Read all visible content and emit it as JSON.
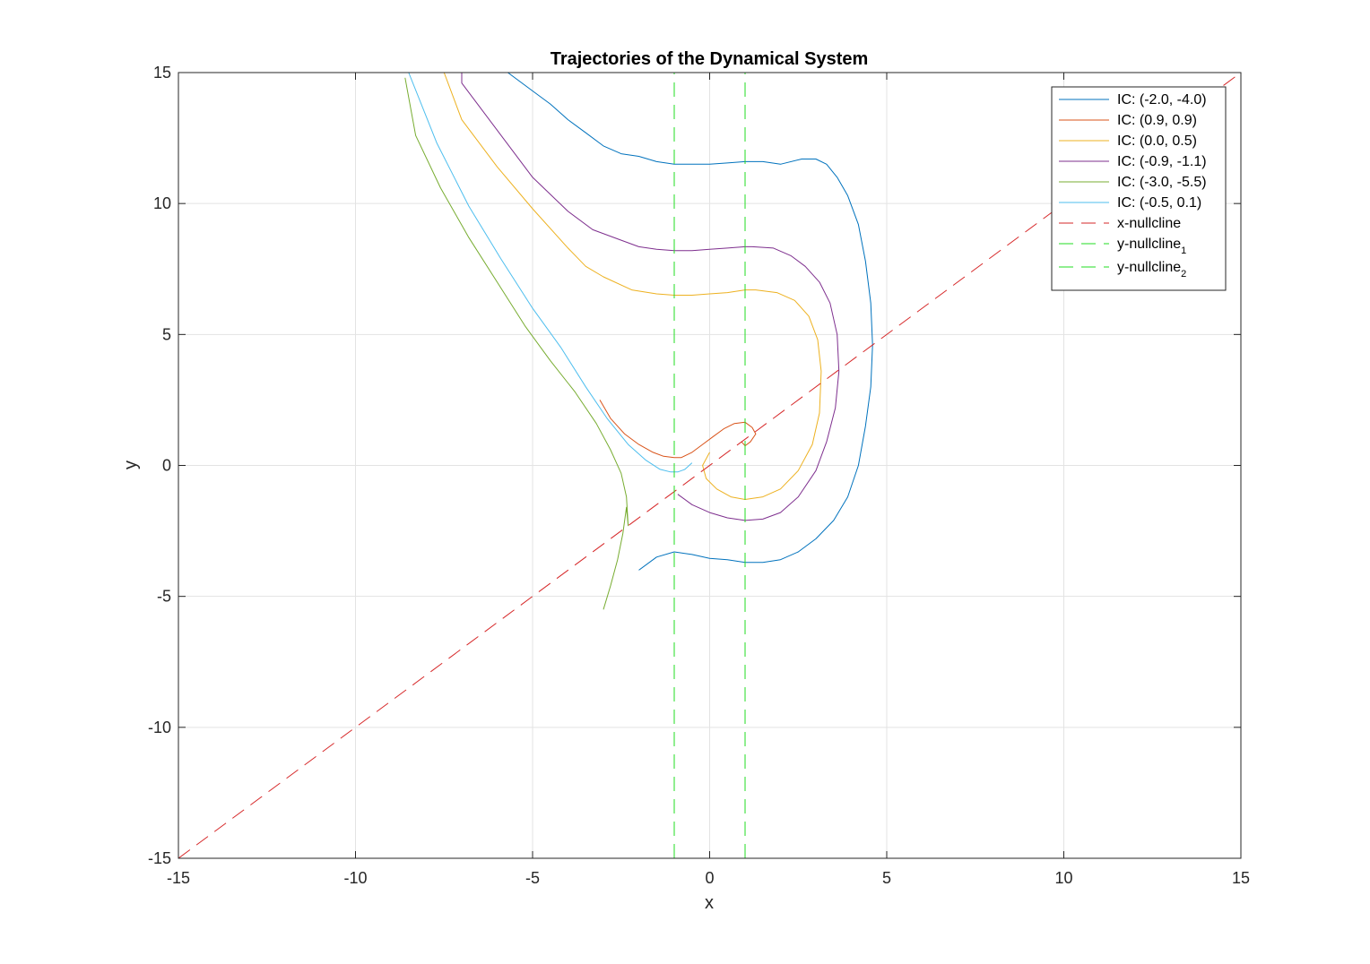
{
  "chart_data": {
    "type": "line",
    "title": "Trajectories of the Dynamical System",
    "xlabel": "x",
    "ylabel": "y",
    "xlim": [
      -15,
      15
    ],
    "ylim": [
      -15,
      15
    ],
    "xticks": [
      -15,
      -10,
      -5,
      0,
      5,
      10,
      15
    ],
    "yticks": [
      -15,
      -10,
      -5,
      0,
      5,
      10,
      15
    ],
    "xtick_labels": [
      "-15",
      "-10",
      "-5",
      "0",
      "5",
      "10",
      "15"
    ],
    "ytick_labels": [
      "-15",
      "-10",
      "-5",
      "0",
      "5",
      "10",
      "15"
    ],
    "grid": true,
    "legend_position": "top-right",
    "series": [
      {
        "name": "IC: (-2.0, -4.0)",
        "color": "#0072BD",
        "style": "solid",
        "x": [
          -2.0,
          -1.5,
          -1.0,
          -0.5,
          0.0,
          0.5,
          1.0,
          1.5,
          2.0,
          2.5,
          3.0,
          3.5,
          3.9,
          4.2,
          4.4,
          4.55,
          4.6,
          4.55,
          4.4,
          4.2,
          3.9,
          3.6,
          3.3,
          3.0,
          2.6,
          2.0,
          1.5,
          1.0,
          0.5,
          0.0,
          -0.5,
          -1.0,
          -1.5,
          -2.0,
          -2.5,
          -3.0,
          -3.5,
          -4.0,
          -4.5,
          -5.0,
          -5.7
        ],
        "y": [
          -4.0,
          -3.5,
          -3.3,
          -3.4,
          -3.55,
          -3.6,
          -3.7,
          -3.7,
          -3.6,
          -3.3,
          -2.8,
          -2.1,
          -1.2,
          0.0,
          1.5,
          3.0,
          4.6,
          6.2,
          7.8,
          9.2,
          10.3,
          11.0,
          11.5,
          11.7,
          11.7,
          11.5,
          11.6,
          11.6,
          11.55,
          11.5,
          11.5,
          11.5,
          11.6,
          11.8,
          11.9,
          12.2,
          12.7,
          13.2,
          13.8,
          14.3,
          15.0
        ]
      },
      {
        "name": "IC: (0.9, 0.9)",
        "color": "#D95319",
        "style": "solid",
        "x": [
          0.9,
          1.0,
          1.15,
          1.3,
          1.2,
          1.0,
          0.7,
          0.4,
          0.1,
          -0.2,
          -0.5,
          -0.8,
          -1.0,
          -1.3,
          -1.6,
          -2.0,
          -2.4,
          -2.8,
          -3.1
        ],
        "y": [
          0.9,
          0.75,
          0.9,
          1.2,
          1.45,
          1.65,
          1.6,
          1.4,
          1.1,
          0.8,
          0.5,
          0.3,
          0.3,
          0.35,
          0.5,
          0.8,
          1.2,
          1.8,
          2.5
        ]
      },
      {
        "name": "IC: (0.0, 0.5)",
        "color": "#EDB120",
        "style": "solid",
        "x": [
          0.0,
          -0.2,
          -0.1,
          0.2,
          0.6,
          1.0,
          1.5,
          2.0,
          2.5,
          2.9,
          3.1,
          3.15,
          3.05,
          2.8,
          2.4,
          1.9,
          1.3,
          1.0,
          0.5,
          0.0,
          -0.5,
          -1.0,
          -1.5,
          -2.2,
          -3.0,
          -3.5,
          -4.0,
          -5.0,
          -6.0,
          -7.0,
          -7.5
        ],
        "y": [
          0.5,
          0.0,
          -0.5,
          -0.9,
          -1.2,
          -1.3,
          -1.2,
          -0.9,
          -0.2,
          0.8,
          2.0,
          3.6,
          4.8,
          5.7,
          6.3,
          6.6,
          6.7,
          6.7,
          6.6,
          6.55,
          6.5,
          6.5,
          6.55,
          6.7,
          7.2,
          7.6,
          8.3,
          9.8,
          11.4,
          13.2,
          15.0
        ]
      },
      {
        "name": "IC: (-0.9, -1.1)",
        "color": "#7E2F8E",
        "style": "solid",
        "x": [
          -0.9,
          -0.5,
          0.0,
          0.5,
          1.0,
          1.5,
          2.0,
          2.5,
          3.0,
          3.3,
          3.55,
          3.65,
          3.6,
          3.4,
          3.1,
          2.7,
          2.3,
          1.8,
          1.2,
          1.0,
          0.5,
          0.0,
          -0.5,
          -1.0,
          -1.5,
          -2.0,
          -2.5,
          -3.3,
          -4.0,
          -5.0,
          -6.0,
          -7.0,
          -7.0
        ],
        "y": [
          -1.1,
          -1.5,
          -1.8,
          -2.0,
          -2.1,
          -2.05,
          -1.8,
          -1.2,
          -0.2,
          0.9,
          2.2,
          3.6,
          5.0,
          6.2,
          7.0,
          7.6,
          8.0,
          8.3,
          8.35,
          8.35,
          8.3,
          8.25,
          8.2,
          8.2,
          8.25,
          8.35,
          8.6,
          9.0,
          9.7,
          11.0,
          12.8,
          14.6,
          15.0
        ]
      },
      {
        "name": "IC: (-3.0, -5.5)",
        "color": "#77AC30",
        "style": "solid",
        "x": [
          -3.0,
          -2.8,
          -2.6,
          -2.45,
          -2.35,
          -2.3,
          -2.35,
          -2.5,
          -2.8,
          -3.2,
          -3.8,
          -4.5,
          -5.2,
          -6.0,
          -6.8,
          -7.6,
          -8.3,
          -8.6
        ],
        "y": [
          -5.5,
          -4.6,
          -3.6,
          -2.6,
          -1.6,
          -2.3,
          -1.2,
          -0.3,
          0.6,
          1.6,
          2.8,
          4.0,
          5.3,
          7.0,
          8.7,
          10.6,
          12.6,
          14.8
        ]
      },
      {
        "name": "IC: (-0.5, 0.1)",
        "color": "#4DBEEE",
        "style": "solid",
        "x": [
          -0.5,
          -0.7,
          -0.9,
          -1.1,
          -1.4,
          -1.8,
          -2.3,
          -2.9,
          -3.5,
          -4.2,
          -5.0,
          -5.9,
          -6.8,
          -7.7,
          -8.5
        ],
        "y": [
          0.1,
          -0.15,
          -0.25,
          -0.25,
          -0.15,
          0.2,
          0.8,
          1.8,
          3.0,
          4.5,
          6.0,
          7.9,
          9.9,
          12.3,
          15.0
        ]
      },
      {
        "name": "x-nullcline",
        "color": "#D62728",
        "style": "dashed",
        "x": [
          -15,
          15
        ],
        "y": [
          -15,
          15
        ]
      },
      {
        "name": "y-nullcline",
        "name_sub": "1",
        "color": "#22DD22",
        "style": "dashed",
        "x": [
          -1,
          -1
        ],
        "y": [
          -15,
          15
        ]
      },
      {
        "name": "y-nullcline",
        "name_sub": "2",
        "color": "#22DD22",
        "style": "dashed",
        "x": [
          1,
          1
        ],
        "y": [
          -15,
          15
        ]
      }
    ]
  }
}
